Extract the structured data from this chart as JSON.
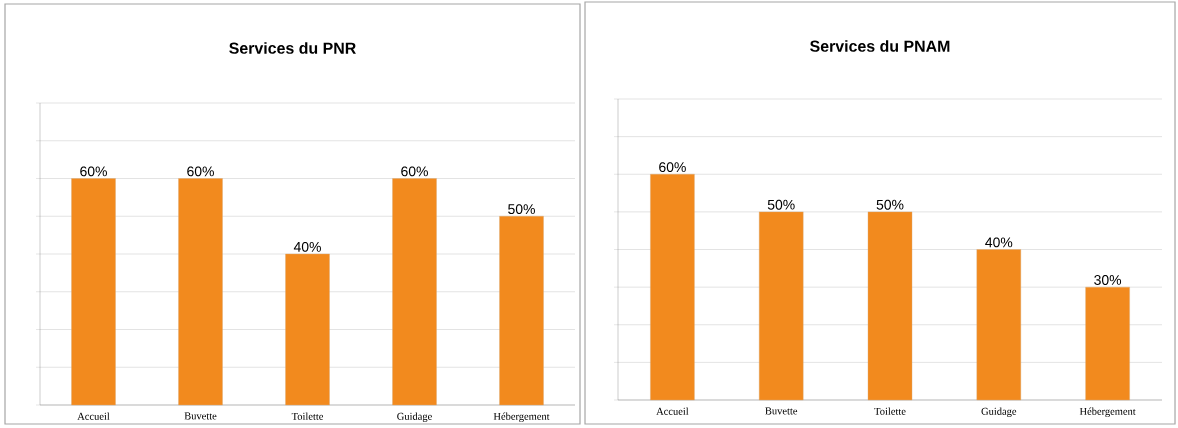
{
  "chart_data": [
    {
      "type": "bar",
      "title": "Services du PNR",
      "categories": [
        "Accueil",
        "Buvette",
        "Toilette",
        "Guidage",
        "Hébergement"
      ],
      "values": [
        60,
        60,
        40,
        60,
        50
      ],
      "value_labels": [
        "60%",
        "60%",
        "40%",
        "60%",
        "50%"
      ],
      "color": "#f28a1e",
      "ylim": [
        0,
        80
      ],
      "yticks": [
        {
          "value": 0,
          "label": null
        },
        {
          "value": 10,
          "label": null
        },
        {
          "value": 20,
          "label": null
        },
        {
          "value": 30,
          "label": null
        },
        {
          "value": 40,
          "label": null
        },
        {
          "value": 50,
          "label": null
        },
        {
          "value": 60,
          "label": null
        },
        {
          "value": 70,
          "label": null
        },
        {
          "value": 80,
          "label": null
        }
      ],
      "grid": "y",
      "tick_labels": "x"
    },
    {
      "type": "bar",
      "title": "Services du PNAM",
      "categories": [
        "Accueil",
        "Buvette",
        "Toilette",
        "Guidage",
        "Hébergement"
      ],
      "values": [
        60,
        50,
        50,
        40,
        30
      ],
      "value_labels": [
        "60%",
        "50%",
        "50%",
        "40%",
        "30%"
      ],
      "color": "#f28a1e",
      "ylim": [
        0,
        80
      ],
      "yticks": [
        {
          "value": 0,
          "label": null
        },
        {
          "value": 10,
          "label": null
        },
        {
          "value": 20,
          "label": null
        },
        {
          "value": 30,
          "label": null
        },
        {
          "value": 40,
          "label": null
        },
        {
          "value": 50,
          "label": null
        },
        {
          "value": 60,
          "label": null
        },
        {
          "value": 70,
          "label": null
        },
        {
          "value": 80,
          "label": null
        }
      ],
      "grid": "y",
      "tick_labels": "x"
    }
  ]
}
